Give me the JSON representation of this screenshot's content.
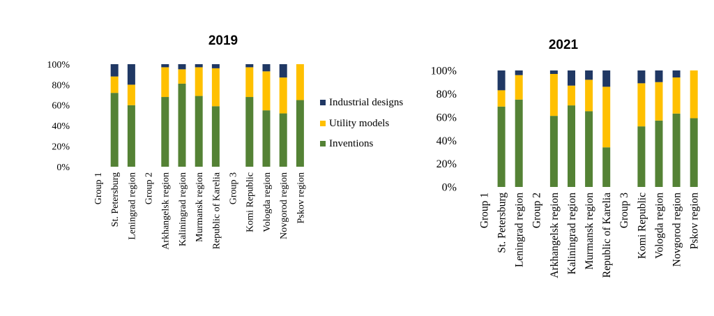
{
  "chart_data": [
    {
      "type": "bar",
      "stacked": "percent",
      "title": "2019",
      "categories": [
        "Group 1",
        "St. Petersburg",
        "Leningrad region",
        "Group 2",
        "Arkhangelsk region",
        "Kaliningrad region",
        "Murmansk region",
        "Republic of Karelia",
        "Group 3",
        "Komi Republic",
        "Vologda region",
        "Novgorod region",
        "Pskov region"
      ],
      "y_tick_labels": [
        "0%",
        "20%",
        "40%",
        "60%",
        "80%",
        "100%"
      ],
      "ylim": [
        0,
        100
      ],
      "legend": "right",
      "series": [
        {
          "name": "Inventions",
          "values": [
            0,
            72,
            60,
            0,
            68,
            81,
            69,
            59,
            0,
            68,
            55,
            52,
            65
          ]
        },
        {
          "name": "Utility models",
          "values": [
            0,
            16,
            20,
            0,
            29,
            14,
            28,
            37,
            0,
            29,
            38,
            35,
            35
          ]
        },
        {
          "name": "Industrial designs",
          "values": [
            0,
            12,
            20,
            0,
            3,
            5,
            3,
            4,
            0,
            3,
            7,
            13,
            0
          ]
        }
      ]
    },
    {
      "type": "bar",
      "stacked": "percent",
      "title": "2021",
      "categories": [
        "Group 1",
        "St. Petersburg",
        "Leningrad region",
        "Group 2",
        "Arkhangelsk region",
        "Kaliningrad region",
        "Murmansk region",
        "Republic of Karelia",
        "Group 3",
        "Komi Republic",
        "Vologda region",
        "Novgorod region",
        "Pskov region"
      ],
      "y_tick_labels": [
        "0%",
        "20%",
        "40%",
        "60%",
        "80%",
        "100%"
      ],
      "ylim": [
        0,
        100
      ],
      "series": [
        {
          "name": "Inventions",
          "values": [
            0,
            69,
            75,
            0,
            61,
            70,
            65,
            34,
            0,
            52,
            57,
            63,
            59
          ]
        },
        {
          "name": "Utility models",
          "values": [
            0,
            14,
            21,
            0,
            36,
            17,
            27,
            52,
            0,
            37,
            33,
            31,
            41
          ]
        },
        {
          "name": "Industrial designs",
          "values": [
            0,
            17,
            4,
            0,
            3,
            13,
            8,
            14,
            0,
            11,
            10,
            6,
            0
          ]
        }
      ]
    }
  ],
  "legend_labels": [
    "Industrial designs",
    "Utility models",
    "Inventions"
  ],
  "colors": {
    "Inventions": "#548235",
    "Utility models": "#FFC000",
    "Industrial designs": "#203864"
  }
}
